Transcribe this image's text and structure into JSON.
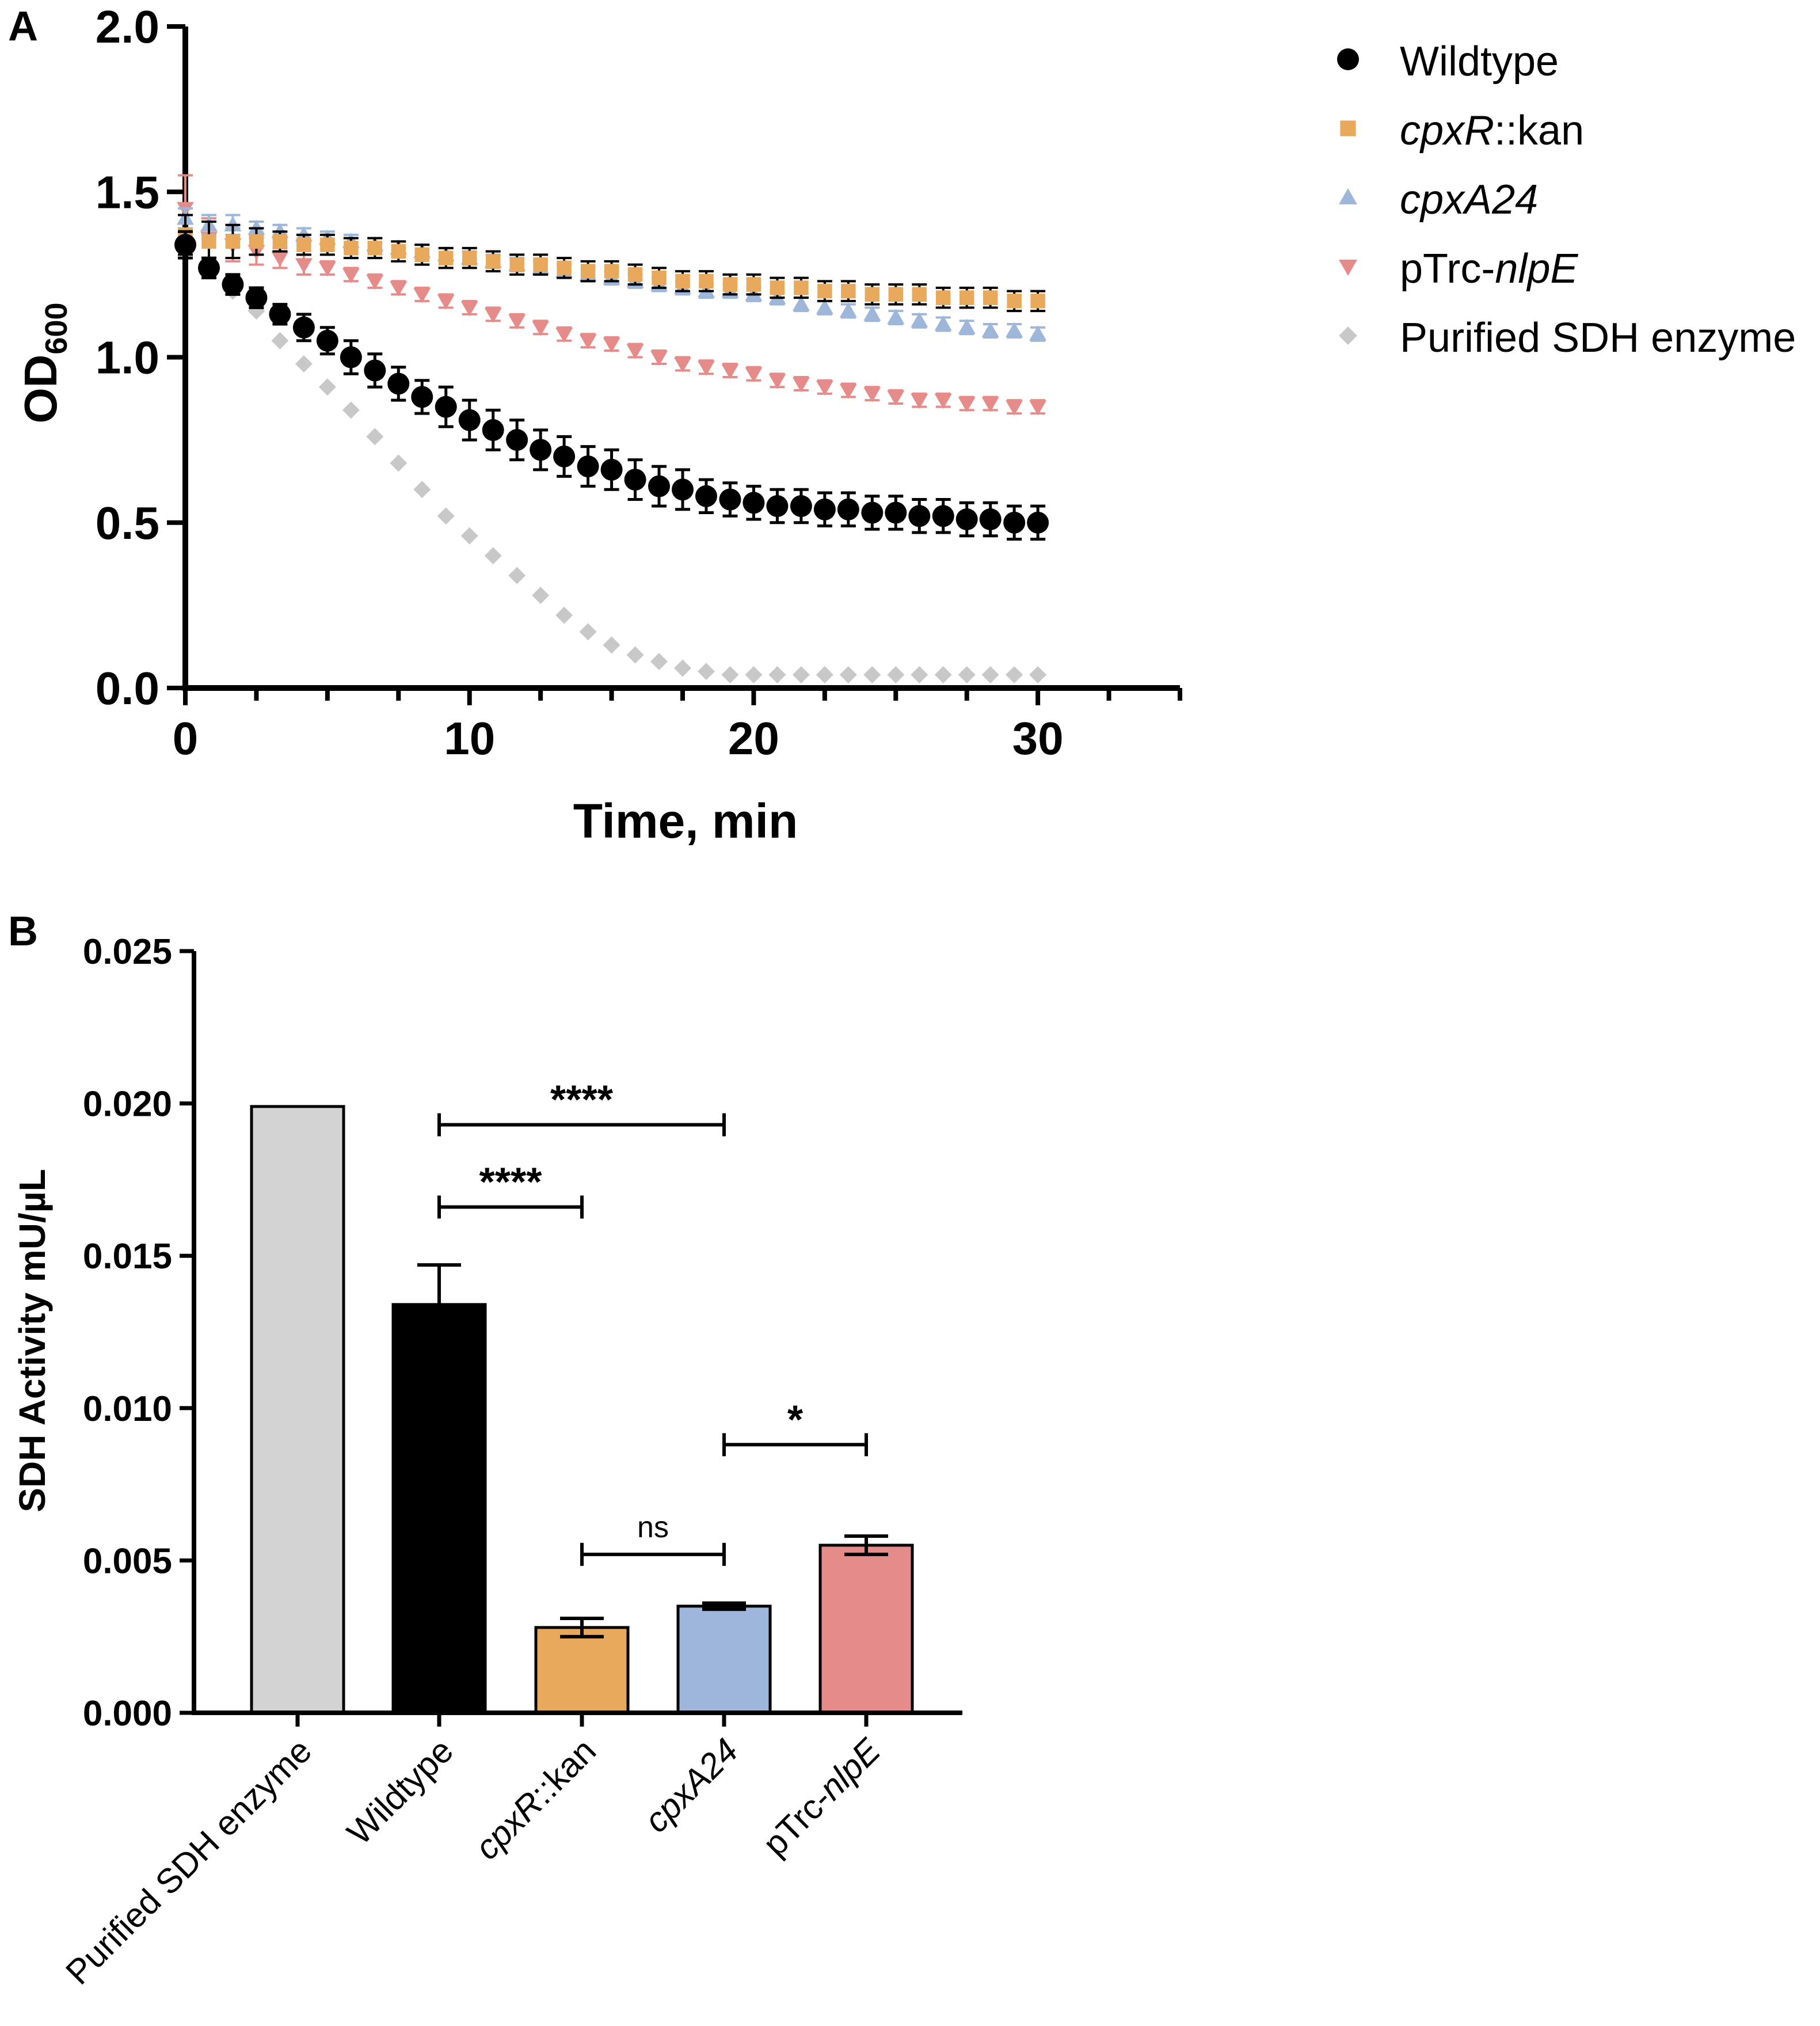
{
  "panel_a_letter": "A",
  "panel_b_letter": "B",
  "chart_data": [
    {
      "type": "scatter",
      "panel": "A",
      "title": "",
      "xlabel": "Time, min",
      "ylabel": "OD",
      "ylabel_subscript": "600",
      "xlim": [
        0,
        35
      ],
      "ylim": [
        0,
        2.0
      ],
      "x_ticks": [
        0,
        10,
        20,
        30
      ],
      "x_minor_step": 2.5,
      "y_ticks": [
        0.0,
        0.5,
        1.0,
        1.5,
        2.0
      ],
      "x_tick_labels": [
        "0",
        "10",
        "20",
        "30"
      ],
      "y_tick_labels": [
        "0.0",
        "0.5",
        "1.0",
        "1.5",
        "2.0"
      ],
      "x": [
        0,
        0.83,
        1.67,
        2.5,
        3.33,
        4.17,
        5,
        5.83,
        6.67,
        7.5,
        8.33,
        9.17,
        10,
        10.83,
        11.67,
        12.5,
        13.33,
        14.17,
        15,
        15.83,
        16.67,
        17.5,
        18.33,
        19.17,
        20,
        20.83,
        21.67,
        22.5,
        23.33,
        24.17,
        25,
        25.83,
        26.67,
        27.5,
        28.33,
        29.17,
        30
      ],
      "legend_position": "top-right",
      "series": [
        {
          "name_parts": [
            {
              "text": "Wildtype",
              "italic": false
            }
          ],
          "marker": "circle",
          "color": "#000000",
          "values": [
            1.34,
            1.27,
            1.22,
            1.18,
            1.13,
            1.09,
            1.05,
            1.0,
            0.96,
            0.92,
            0.88,
            0.85,
            0.81,
            0.78,
            0.75,
            0.72,
            0.7,
            0.67,
            0.66,
            0.63,
            0.61,
            0.6,
            0.58,
            0.57,
            0.56,
            0.55,
            0.55,
            0.54,
            0.54,
            0.53,
            0.53,
            0.52,
            0.52,
            0.51,
            0.51,
            0.5,
            0.5
          ],
          "errors": [
            0.04,
            0.03,
            0.03,
            0.03,
            0.03,
            0.04,
            0.04,
            0.05,
            0.05,
            0.05,
            0.05,
            0.06,
            0.06,
            0.06,
            0.06,
            0.06,
            0.06,
            0.06,
            0.06,
            0.06,
            0.06,
            0.06,
            0.05,
            0.05,
            0.05,
            0.05,
            0.05,
            0.05,
            0.05,
            0.05,
            0.05,
            0.05,
            0.05,
            0.05,
            0.05,
            0.05,
            0.05
          ]
        },
        {
          "name_parts": [
            {
              "text": "cpxR",
              "italic": true
            },
            {
              "text": "::kan",
              "italic": false
            }
          ],
          "marker": "square",
          "color": "#E8A95C",
          "values": [
            1.37,
            1.35,
            1.35,
            1.35,
            1.35,
            1.34,
            1.34,
            1.33,
            1.33,
            1.32,
            1.31,
            1.3,
            1.3,
            1.29,
            1.28,
            1.28,
            1.27,
            1.26,
            1.26,
            1.25,
            1.24,
            1.23,
            1.23,
            1.22,
            1.22,
            1.21,
            1.21,
            1.2,
            1.2,
            1.19,
            1.19,
            1.19,
            1.18,
            1.18,
            1.18,
            1.17,
            1.17
          ],
          "errors": [
            0.06,
            0.06,
            0.05,
            0.04,
            0.03,
            0.03,
            0.03,
            0.03,
            0.03,
            0.03,
            0.03,
            0.03,
            0.03,
            0.03,
            0.03,
            0.03,
            0.03,
            0.03,
            0.03,
            0.03,
            0.03,
            0.03,
            0.03,
            0.03,
            0.03,
            0.03,
            0.03,
            0.03,
            0.03,
            0.03,
            0.03,
            0.03,
            0.03,
            0.03,
            0.03,
            0.03,
            0.03
          ]
        },
        {
          "name_parts": [
            {
              "text": "cpxA24",
              "italic": true
            }
          ],
          "marker": "triangle-up",
          "color": "#9DB6D9",
          "values": [
            1.42,
            1.4,
            1.4,
            1.39,
            1.38,
            1.37,
            1.36,
            1.35,
            1.34,
            1.33,
            1.32,
            1.31,
            1.3,
            1.29,
            1.28,
            1.27,
            1.26,
            1.25,
            1.24,
            1.23,
            1.22,
            1.21,
            1.2,
            1.2,
            1.19,
            1.18,
            1.16,
            1.15,
            1.14,
            1.13,
            1.12,
            1.11,
            1.1,
            1.09,
            1.08,
            1.08,
            1.07
          ],
          "errors": [
            0.03,
            0.03,
            0.03,
            0.02,
            0.02,
            0.02,
            0.02,
            0.02,
            0.02,
            0.02,
            0.02,
            0.02,
            0.02,
            0.02,
            0.02,
            0.02,
            0.02,
            0.02,
            0.02,
            0.02,
            0.02,
            0.02,
            0.02,
            0.02,
            0.02,
            0.02,
            0.02,
            0.02,
            0.02,
            0.02,
            0.02,
            0.02,
            0.02,
            0.02,
            0.02,
            0.02,
            0.02
          ]
        },
        {
          "name_parts": [
            {
              "text": "pTrc-",
              "italic": false
            },
            {
              "text": "nlpE",
              "italic": true
            }
          ],
          "marker": "triangle-down",
          "color": "#E58C8A",
          "values": [
            1.45,
            1.36,
            1.34,
            1.32,
            1.3,
            1.28,
            1.27,
            1.25,
            1.23,
            1.21,
            1.19,
            1.17,
            1.15,
            1.13,
            1.11,
            1.09,
            1.07,
            1.05,
            1.04,
            1.02,
            1.0,
            0.98,
            0.97,
            0.96,
            0.95,
            0.93,
            0.92,
            0.91,
            0.9,
            0.89,
            0.88,
            0.87,
            0.87,
            0.86,
            0.86,
            0.85,
            0.85
          ],
          "errors": [
            0.1,
            0.06,
            0.05,
            0.04,
            0.03,
            0.03,
            0.02,
            0.02,
            0.02,
            0.02,
            0.02,
            0.02,
            0.02,
            0.02,
            0.02,
            0.02,
            0.02,
            0.02,
            0.02,
            0.02,
            0.02,
            0.02,
            0.02,
            0.02,
            0.02,
            0.02,
            0.02,
            0.02,
            0.02,
            0.02,
            0.02,
            0.02,
            0.02,
            0.02,
            0.02,
            0.02,
            0.02
          ]
        },
        {
          "name_parts": [
            {
              "text": "Purified SDH enzyme",
              "italic": false
            }
          ],
          "marker": "diamond",
          "color": "#C8C8C8",
          "values": [
            1.35,
            1.27,
            1.2,
            1.14,
            1.05,
            0.98,
            0.91,
            0.84,
            0.76,
            0.68,
            0.6,
            0.52,
            0.46,
            0.4,
            0.34,
            0.28,
            0.22,
            0.17,
            0.13,
            0.1,
            0.08,
            0.06,
            0.05,
            0.04,
            0.04,
            0.04,
            0.04,
            0.04,
            0.04,
            0.04,
            0.04,
            0.04,
            0.04,
            0.04,
            0.04,
            0.04,
            0.04
          ]
        }
      ]
    },
    {
      "type": "bar",
      "panel": "B",
      "title": "",
      "xlabel": "",
      "ylabel": "SDH Activity mU/µL",
      "ylim": [
        0,
        0.025
      ],
      "y_ticks": [
        0.0,
        0.005,
        0.01,
        0.015,
        0.02,
        0.025
      ],
      "y_tick_labels": [
        "0.000",
        "0.005",
        "0.010",
        "0.015",
        "0.020",
        "0.025"
      ],
      "categories": [
        "Purified SDH enzyme",
        "Wildtype",
        "cpxR::kan",
        "cpxA24",
        "pTrc-nlpE"
      ],
      "category_parts": [
        [
          {
            "text": "Purified SDH enzyme",
            "italic": false
          }
        ],
        [
          {
            "text": "Wildtype",
            "italic": false
          }
        ],
        [
          {
            "text": "cpxR",
            "italic": true
          },
          {
            "text": "::kan",
            "italic": false
          }
        ],
        [
          {
            "text": "cpxA24",
            "italic": true
          }
        ],
        [
          {
            "text": "pTrc-",
            "italic": false
          },
          {
            "text": "nlpE",
            "italic": true
          }
        ]
      ],
      "values": [
        0.0199,
        0.0134,
        0.0028,
        0.0035,
        0.0055
      ],
      "errors": [
        0.0,
        0.0013,
        0.0003,
        0.0001,
        0.0003
      ],
      "colors": [
        "#D3D3D3",
        "#000000",
        "#E8A95C",
        "#9DB6D9",
        "#E58C8A"
      ],
      "significance": [
        {
          "from": 1,
          "to": 3,
          "label": "****",
          "y": 0.0193
        },
        {
          "from": 1,
          "to": 2,
          "label": "****",
          "y": 0.0166
        },
        {
          "from": 2,
          "to": 3,
          "label": "ns",
          "y": 0.0052
        },
        {
          "from": 3,
          "to": 4,
          "label": "*",
          "y": 0.0088
        }
      ]
    }
  ]
}
